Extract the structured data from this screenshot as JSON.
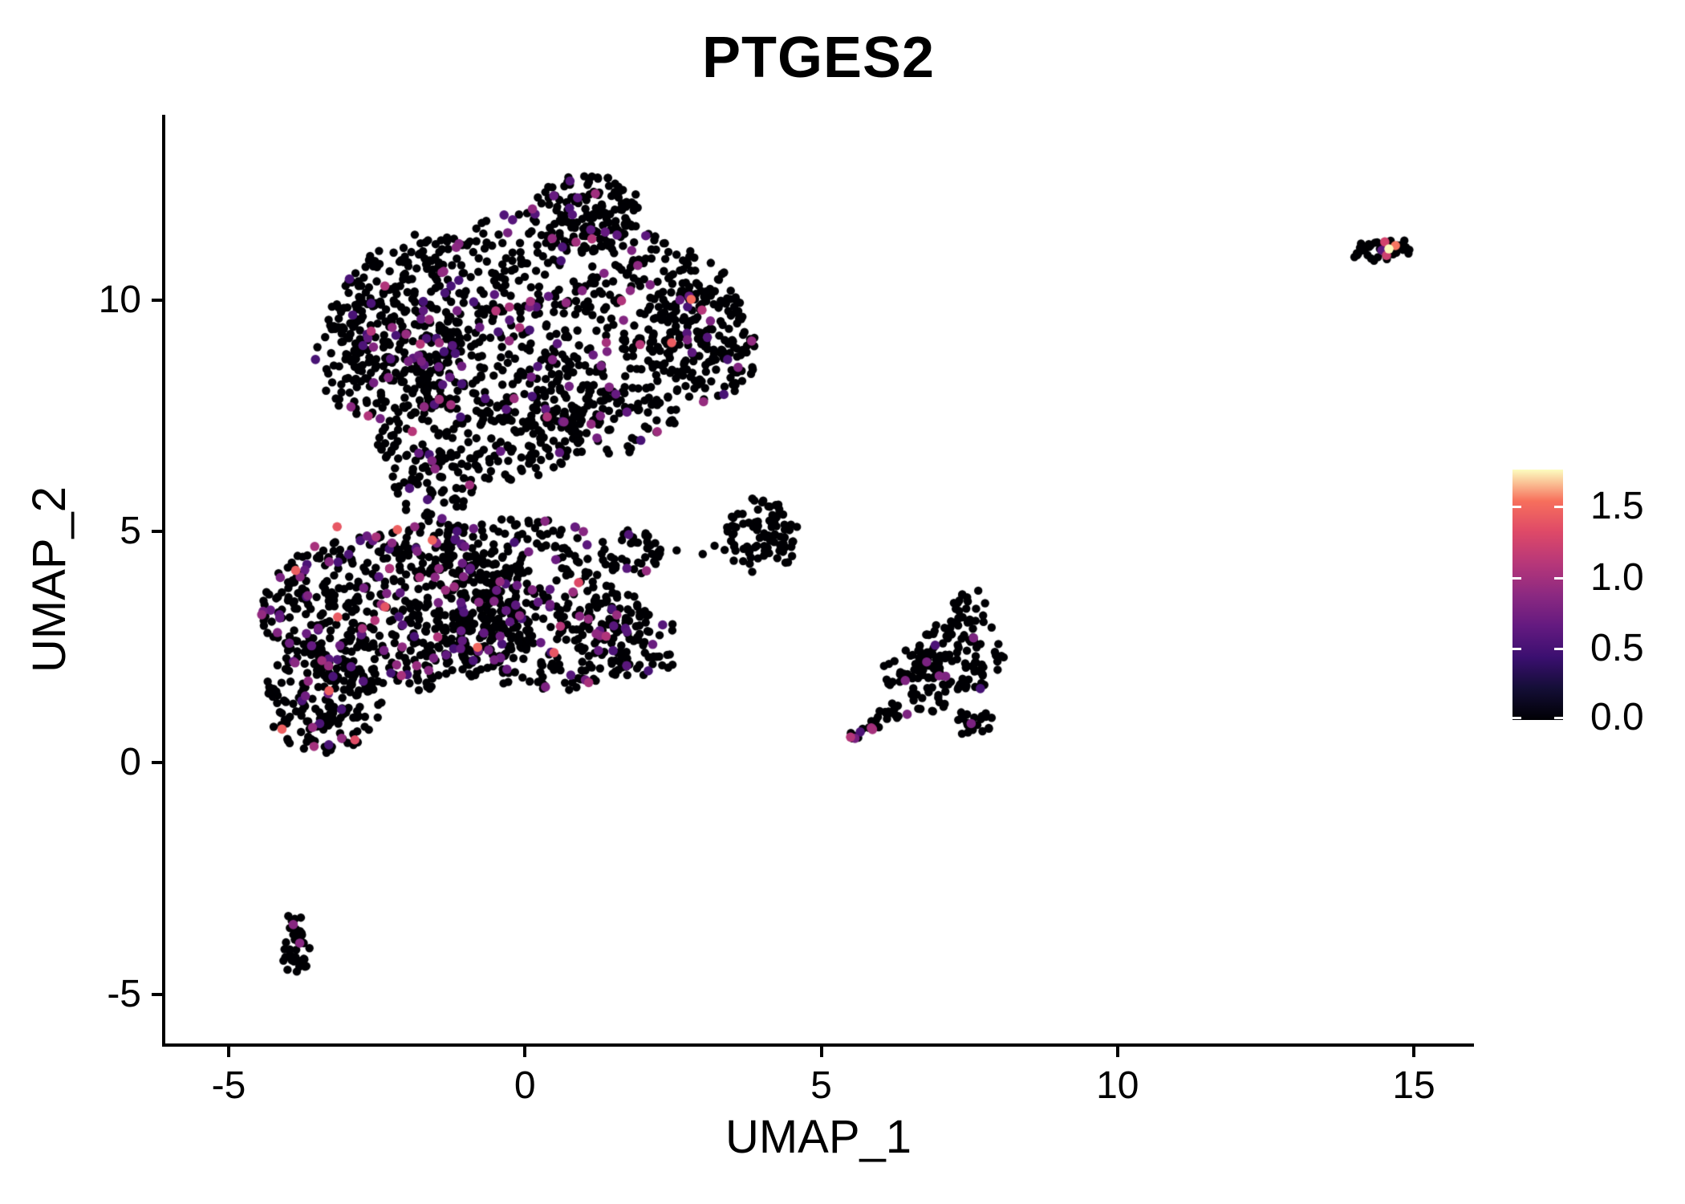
{
  "chart_data": {
    "type": "scatter",
    "title": "PTGES2",
    "xlabel": "UMAP_1",
    "ylabel": "UMAP_2",
    "xlim": [
      -6.083,
      15.988
    ],
    "ylim": [
      -6.092,
      13.995
    ],
    "x_ticks": [
      {
        "value": -5,
        "label": "-5"
      },
      {
        "value": 0,
        "label": "0"
      },
      {
        "value": 5,
        "label": "5"
      },
      {
        "value": 10,
        "label": "10"
      },
      {
        "value": 15,
        "label": "15"
      }
    ],
    "y_ticks": [
      {
        "value": -5,
        "label": "-5"
      },
      {
        "value": 0,
        "label": "0"
      },
      {
        "value": 5,
        "label": "5"
      },
      {
        "value": 10,
        "label": "10"
      }
    ],
    "grid": false,
    "legend": {
      "position": "right",
      "vmin": 0.0,
      "vmax": 1.76,
      "ticks": [
        {
          "value": 0.0,
          "label": "0.0"
        },
        {
          "value": 0.5,
          "label": "0.5"
        },
        {
          "value": 1.0,
          "label": "1.0"
        },
        {
          "value": 1.5,
          "label": "1.5"
        }
      ],
      "colormap": "magma",
      "colormap_stops": [
        {
          "t": 0.0,
          "color": "#000004"
        },
        {
          "t": 0.125,
          "color": "#140e36"
        },
        {
          "t": 0.25,
          "color": "#3b0f70"
        },
        {
          "t": 0.375,
          "color": "#641a80"
        },
        {
          "t": 0.5,
          "color": "#8c2981"
        },
        {
          "t": 0.625,
          "color": "#b73779"
        },
        {
          "t": 0.75,
          "color": "#de4968"
        },
        {
          "t": 0.875,
          "color": "#f7705c"
        },
        {
          "t": 1.0,
          "color": "#fcfdbf"
        }
      ]
    },
    "style": {
      "background": "#ffffff",
      "axis_color": "#000000",
      "zero_expression_color": "#000004",
      "point_radius_px": 5.2,
      "colored_point_radius_px": 5.8
    },
    "generation": {
      "seed": 20240607,
      "colored_value_base": 0.5,
      "colored_value_span": 0.6,
      "colored_value_power": 1.6,
      "hot_fraction": 0.04,
      "hot_value_base": 1.3,
      "hot_value_span": 0.25
    },
    "clusters": [
      {
        "name": "main-upper-core",
        "cx": 0.2,
        "cy": 9.6,
        "rx": 3.5,
        "ry": 2.3,
        "n": 850,
        "p_colored": 0.1
      },
      {
        "name": "main-upper-top-spike",
        "cx": 1.05,
        "cy": 11.95,
        "rx": 0.95,
        "ry": 0.75,
        "n": 110,
        "p_colored": 0.08
      },
      {
        "name": "main-upper-left-lobe",
        "cx": -2.3,
        "cy": 8.8,
        "rx": 1.25,
        "ry": 1.5,
        "n": 170,
        "p_colored": 0.1
      },
      {
        "name": "main-upper-right-lobe",
        "cx": 3.0,
        "cy": 9.0,
        "rx": 0.95,
        "ry": 1.25,
        "n": 130,
        "p_colored": 0.1
      },
      {
        "name": "main-upper-underside",
        "cx": -0.8,
        "cy": 7.0,
        "rx": 1.7,
        "ry": 1.0,
        "n": 170,
        "p_colored": 0.09
      },
      {
        "name": "main-neck",
        "cx": -1.6,
        "cy": 6.0,
        "rx": 0.8,
        "ry": 0.75,
        "n": 60,
        "p_colored": 0.08
      },
      {
        "name": "main-upper-lower-right",
        "cx": 1.3,
        "cy": 7.45,
        "rx": 1.3,
        "ry": 0.8,
        "n": 90,
        "p_colored": 0.08
      },
      {
        "name": "main-lower-core",
        "cx": -2.1,
        "cy": 3.3,
        "rx": 2.35,
        "ry": 1.75,
        "n": 650,
        "p_colored": 0.12
      },
      {
        "name": "main-lower-bl-lobe",
        "cx": -3.4,
        "cy": 1.4,
        "rx": 1.0,
        "ry": 1.2,
        "n": 170,
        "p_colored": 0.1
      },
      {
        "name": "main-lower-right-ext",
        "cx": 0.4,
        "cy": 2.9,
        "rx": 1.7,
        "ry": 1.35,
        "n": 280,
        "p_colored": 0.11
      },
      {
        "name": "main-lower-beak",
        "cx": 1.9,
        "cy": 2.55,
        "rx": 0.8,
        "ry": 0.7,
        "n": 60,
        "p_colored": 0.1
      },
      {
        "name": "main-lower-top-band",
        "cx": -0.5,
        "cy": 4.7,
        "rx": 1.7,
        "ry": 0.75,
        "n": 120,
        "p_colored": 0.1
      },
      {
        "name": "bridge-clump",
        "cx": 1.75,
        "cy": 4.55,
        "rx": 0.55,
        "ry": 0.5,
        "n": 45,
        "p_colored": 0.07
      },
      {
        "name": "mid-small-cluster",
        "cx": 4.0,
        "cy": 4.9,
        "rx": 0.62,
        "ry": 0.85,
        "n": 85,
        "p_colored": 0.0
      },
      {
        "name": "right-cluster-main",
        "cx": 7.3,
        "cy": 2.35,
        "rx": 0.8,
        "ry": 0.85,
        "n": 110,
        "p_colored": 0.02
      },
      {
        "name": "right-cluster-left",
        "cx": 6.55,
        "cy": 1.95,
        "rx": 0.55,
        "ry": 0.5,
        "n": 35,
        "p_colored": 0.02
      },
      {
        "name": "right-cluster-bottom",
        "cx": 7.55,
        "cy": 0.85,
        "rx": 0.38,
        "ry": 0.28,
        "n": 22,
        "p_colored": 0.0
      },
      {
        "name": "right-cluster-top",
        "cx": 7.5,
        "cy": 3.4,
        "rx": 0.28,
        "ry": 0.42,
        "n": 16,
        "p_colored": 0.0
      },
      {
        "name": "right-cluster-mid",
        "cx": 6.8,
        "cy": 1.35,
        "rx": 0.35,
        "ry": 0.3,
        "n": 14,
        "p_colored": 0.0
      },
      {
        "name": "bottom-left-dense",
        "cx": -3.85,
        "cy": -4.15,
        "rx": 0.25,
        "ry": 0.42,
        "n": 26,
        "p_colored": 0.0
      },
      {
        "name": "bottom-left-upper",
        "cx": -3.85,
        "cy": -3.55,
        "rx": 0.14,
        "ry": 0.35,
        "n": 12,
        "p_colored": 0.0
      },
      {
        "name": "top-right-cluster",
        "cx": 14.32,
        "cy": 11.05,
        "rx": 0.42,
        "ry": 0.22,
        "n": 34,
        "p_colored": 0.0
      },
      {
        "name": "top-right-east",
        "cx": 14.75,
        "cy": 11.12,
        "rx": 0.22,
        "ry": 0.2,
        "n": 12,
        "p_colored": 0.0
      }
    ],
    "segments": [
      {
        "name": "right-cluster-arm",
        "x1": 5.45,
        "y1": 0.5,
        "x2": 6.35,
        "y2": 1.25,
        "w": 0.18,
        "n": 30,
        "p_colored": 0.1
      },
      {
        "name": "bottom-left-tail",
        "x1": -3.95,
        "y1": -3.3,
        "x2": -3.78,
        "y2": -3.95,
        "w": 0.1,
        "n": 10,
        "p_colored": 0.0
      }
    ],
    "highlight_points": [
      {
        "x": 14.51,
        "y": 11.25,
        "v": 1.25
      },
      {
        "x": 14.69,
        "y": 11.17,
        "v": 1.55
      },
      {
        "x": 14.46,
        "y": 11.07,
        "v": 0.6
      },
      {
        "x": 14.58,
        "y": 11.1,
        "v": 1.76
      },
      {
        "x": 14.54,
        "y": 10.96,
        "v": 1.22
      },
      {
        "x": -3.91,
        "y": -3.49,
        "v": 0.85
      },
      {
        "x": -3.8,
        "y": -3.89,
        "v": 0.85
      },
      {
        "x": -4.1,
        "y": 0.73,
        "v": 1.45
      },
      {
        "x": -3.17,
        "y": 5.1,
        "v": 1.4
      },
      {
        "x": -3.16,
        "y": 3.15,
        "v": 1.42
      },
      {
        "x": -2.36,
        "y": 3.37,
        "v": 1.38
      },
      {
        "x": 0.49,
        "y": 2.38,
        "v": 1.4
      },
      {
        "x": 7.57,
        "y": 2.7,
        "v": 0.8
      },
      {
        "x": 6.78,
        "y": 2.18,
        "v": 0.78
      },
      {
        "x": 6.99,
        "y": 1.88,
        "v": 0.82
      },
      {
        "x": 7.1,
        "y": 1.87,
        "v": 0.8
      },
      {
        "x": 7.53,
        "y": 0.85,
        "v": 0.78
      },
      {
        "x": 5.86,
        "y": 0.74,
        "v": 0.8
      },
      {
        "x": 5.57,
        "y": 0.53,
        "v": 0.76
      },
      {
        "x": 6.45,
        "y": 1.05,
        "v": 0.8
      }
    ],
    "stray_points": [
      {
        "x": 3.0,
        "y": 4.51,
        "v": 0
      },
      {
        "x": 3.2,
        "y": 4.69,
        "v": 0
      },
      {
        "x": 3.37,
        "y": 4.6,
        "v": 0
      },
      {
        "x": 2.56,
        "y": 4.59,
        "v": 0
      },
      {
        "x": 14.84,
        "y": 11.28,
        "v": 0
      }
    ]
  }
}
